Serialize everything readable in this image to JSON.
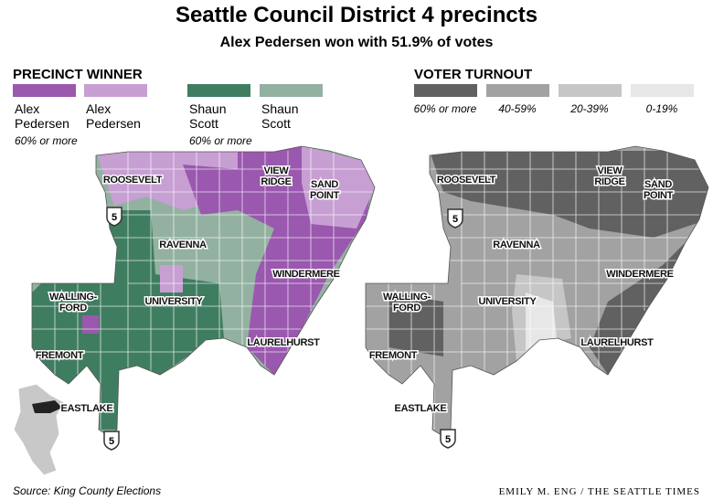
{
  "header": {
    "title": "Seattle Council District 4 precincts",
    "subtitle": "Alex Pedersen won with 51.9% of votes"
  },
  "precinct_winner": {
    "heading": "PRECINCT WINNER",
    "legend": [
      {
        "color": "#9a58ae",
        "name": [
          "Alex",
          "Pedersen"
        ],
        "note": "60% or more"
      },
      {
        "color": "#c79fd3",
        "name": [
          "Alex",
          "Pedersen"
        ]
      },
      {
        "color": "#3f7d61",
        "name": [
          "Shaun",
          "Scott"
        ],
        "note": "60% or more"
      },
      {
        "color": "#93b1a1",
        "name": [
          "Shaun",
          "Scott"
        ]
      }
    ]
  },
  "voter_turnout": {
    "heading": "VOTER TURNOUT",
    "legend": [
      {
        "color": "#616161",
        "label": "60% or more"
      },
      {
        "color": "#a2a2a2",
        "label": "40-59%"
      },
      {
        "color": "#c6c6c6",
        "label": "20-39%"
      },
      {
        "color": "#e7e7e7",
        "label": "0-19%"
      }
    ]
  },
  "map_labels": [
    [
      "ROOSEVELT"
    ],
    [
      "VIEW",
      "RIDGE"
    ],
    [
      "SAND",
      "POINT"
    ],
    [
      "RAVENNA"
    ],
    [
      "WINDERMERE"
    ],
    [
      "WALLING-",
      "FORD"
    ],
    [
      "UNIVERSITY"
    ],
    [
      "FREMONT"
    ],
    [
      "LAURELHURST"
    ],
    [
      "EASTLAKE"
    ]
  ],
  "highway": "5",
  "footer": {
    "source": "Source: King County Elections",
    "credit": "EMILY M. ENG / THE SEATTLE TIMES"
  }
}
